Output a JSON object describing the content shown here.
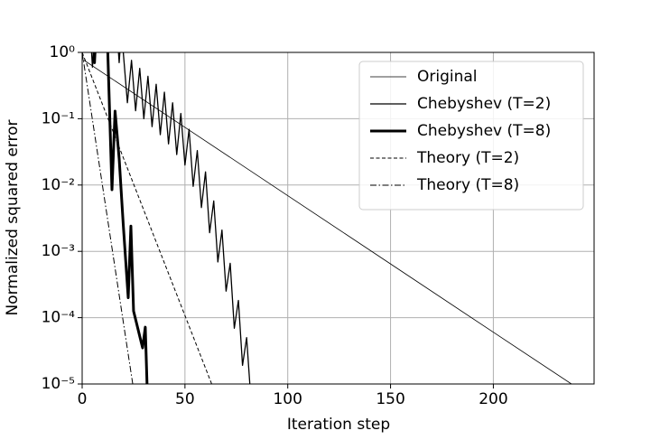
{
  "chart_data": {
    "type": "line",
    "xlabel": "Iteration step",
    "ylabel": "Normalized squared error",
    "log_y": true,
    "grid": true,
    "legend_loc": "upper right",
    "xlim": [
      0,
      249
    ],
    "ylim": [
      1e-05,
      1
    ],
    "xticks": [
      0,
      50,
      100,
      150,
      200
    ],
    "yticks": [
      {
        "value": 1e-05,
        "label": "10⁻⁵"
      },
      {
        "value": 0.0001,
        "label": "10⁻⁴"
      },
      {
        "value": 0.001,
        "label": "10⁻³"
      },
      {
        "value": 0.01,
        "label": "10⁻²"
      },
      {
        "value": 0.1,
        "label": "10⁻¹"
      },
      {
        "value": 1,
        "label": "10⁰"
      }
    ],
    "series": [
      {
        "name": "Original",
        "color": "#000000",
        "linewidth": 0.8,
        "linestyle": "solid",
        "x": [
          0,
          50,
          100,
          150,
          200,
          238
        ],
        "values": [
          0.794,
          0.0741,
          0.00692,
          0.000646,
          6.03e-05,
          1e-05
        ]
      },
      {
        "name": "Chebyshev (T=2)",
        "color": "#000000",
        "linewidth": 1.3,
        "linestyle": "solid",
        "x": [
          4,
          5,
          6,
          17,
          18,
          19,
          20,
          22,
          24,
          26,
          28,
          30,
          32,
          34,
          36,
          38,
          40,
          42,
          44,
          46,
          48,
          50,
          52,
          54,
          56,
          58,
          60,
          62,
          64,
          66,
          68,
          70,
          72,
          74,
          76,
          78,
          80,
          82
        ],
        "values": [
          2,
          0.6,
          2,
          2,
          0.7,
          2,
          1,
          0.174,
          0.759,
          0.132,
          0.575,
          0.1,
          0.437,
          0.0759,
          0.331,
          0.0575,
          0.251,
          0.0417,
          0.174,
          0.0288,
          0.12,
          0.02,
          0.0692,
          0.00955,
          0.0331,
          0.00457,
          0.0158,
          0.00191,
          0.00575,
          0.000692,
          0.00209,
          0.000251,
          0.000661,
          6.92e-05,
          0.000182,
          1.91e-05,
          5.01e-05,
          6.3e-06
        ]
      },
      {
        "name": "Chebyshev (T=8)",
        "color": "#000000",
        "linewidth": 3,
        "linestyle": "solid",
        "x": [
          5,
          6,
          7,
          12,
          14.5,
          16,
          18,
          20,
          22.4,
          23.7,
          25,
          29.4,
          30.7,
          31.6
        ],
        "values": [
          3,
          0.7,
          3,
          3,
          0.0085,
          0.13,
          0.025,
          0.0025,
          0.0002,
          0.0024,
          0.000126,
          3.5e-05,
          7.2e-05,
          8.9e-06
        ]
      },
      {
        "name": "Theory (T=2)",
        "color": "#000000",
        "linewidth": 1,
        "linestyle": "dashed",
        "x": [
          0,
          63
        ],
        "values": [
          1,
          1e-05
        ]
      },
      {
        "name": "Theory (T=8)",
        "color": "#000000",
        "linewidth": 1,
        "linestyle": "dashdot",
        "x": [
          0,
          24.6
        ],
        "values": [
          1,
          1e-05
        ]
      }
    ]
  }
}
